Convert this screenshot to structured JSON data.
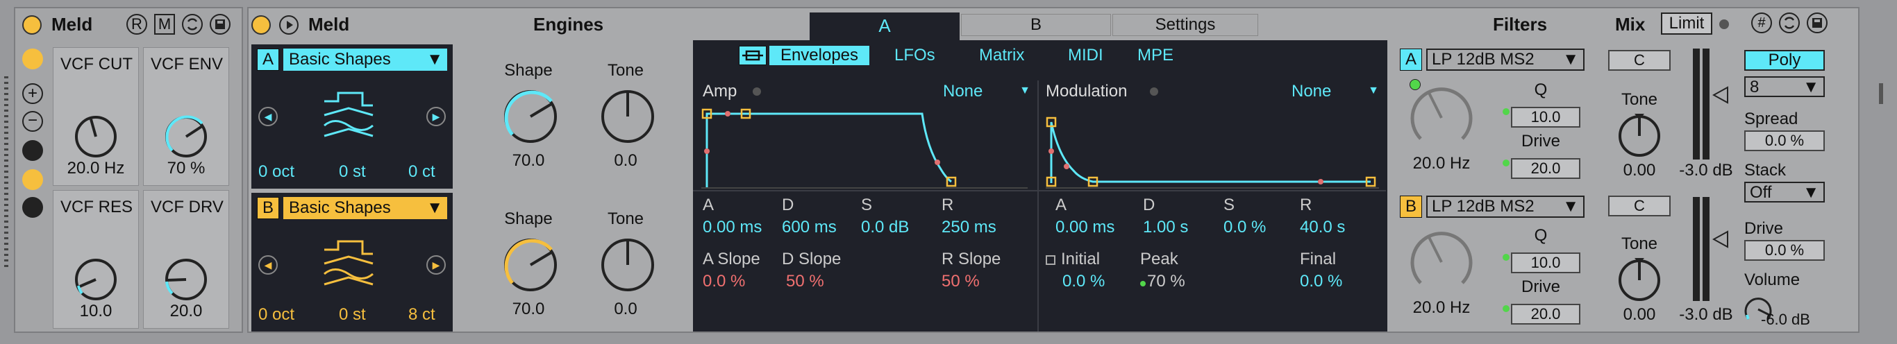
{
  "device1": {
    "title": "Meld",
    "btn_r": "R",
    "btn_m": "M",
    "macros": [
      {
        "label": "VCF CUT",
        "value": "20.0 Hz",
        "level": 0.45
      },
      {
        "label": "VCF ENV",
        "value": "70 %",
        "level": 0.7
      },
      {
        "label": "VCF RES",
        "value": "10.0",
        "level": 0.1
      },
      {
        "label": "VCF DRV",
        "value": "20.0",
        "level": 0.2
      }
    ]
  },
  "device2": {
    "title": "Meld",
    "engines_label": "Engines",
    "tabs": [
      "A",
      "B",
      "Settings"
    ],
    "osc_a": {
      "badge": "A",
      "type": "Basic Shapes",
      "oct": "0 oct",
      "st": "0 st",
      "ct": "0 ct",
      "shape_label": "Shape",
      "shape_value": "70.0",
      "tone_label": "Tone",
      "tone_value": "0.0"
    },
    "osc_b": {
      "badge": "B",
      "type": "Basic Shapes",
      "oct": "0 oct",
      "st": "0 st",
      "ct": "8 ct",
      "shape_label": "Shape",
      "shape_value": "70.0",
      "tone_label": "Tone",
      "tone_value": "0.0"
    },
    "subtabs": [
      "Envelopes",
      "LFOs",
      "Matrix",
      "MIDI",
      "MPE"
    ],
    "amp": {
      "title": "Amp",
      "dest": "None",
      "params": [
        {
          "label": "A",
          "value": "0.00 ms"
        },
        {
          "label": "D",
          "value": "600 ms"
        },
        {
          "label": "S",
          "value": "0.0 dB"
        },
        {
          "label": "R",
          "value": "250 ms"
        }
      ],
      "slopes": [
        {
          "label": "A Slope",
          "value": "0.0 %"
        },
        {
          "label": "D Slope",
          "value": "50 %"
        },
        {
          "label": "R Slope",
          "value": "50 %"
        }
      ]
    },
    "mod": {
      "title": "Modulation",
      "dest": "None",
      "params": [
        {
          "label": "A",
          "value": "0.00 ms"
        },
        {
          "label": "D",
          "value": "1.00 s"
        },
        {
          "label": "S",
          "value": "0.0 %"
        },
        {
          "label": "R",
          "value": "40.0 s"
        }
      ],
      "initial_label": "Initial",
      "initial_value": "0.0 %",
      "peak_label": "Peak",
      "peak_value": "70 %",
      "final_label": "Final",
      "final_value": "0.0 %"
    },
    "filters": {
      "label": "Filters",
      "a": {
        "badge": "A",
        "type": "LP 12dB MS2",
        "freq": "20.0 Hz",
        "q_label": "Q",
        "q_value": "10.0",
        "drive_label": "Drive",
        "drive_value": "20.0"
      },
      "b": {
        "badge": "B",
        "type": "LP 12dB MS2",
        "freq": "20.0 Hz",
        "q_label": "Q",
        "q_value": "10.0",
        "drive_label": "Drive",
        "drive_value": "20.0"
      }
    },
    "mix": {
      "label": "Mix",
      "limit": "Limit",
      "a": {
        "pan": "C",
        "tone_label": "Tone",
        "tone_value": "0.00",
        "gain": "-3.0 dB"
      },
      "b": {
        "pan": "C",
        "tone_label": "Tone",
        "tone_value": "0.00",
        "gain": "-3.0 dB"
      }
    },
    "global": {
      "poly": "Poly",
      "voices": "8",
      "spread_label": "Spread",
      "spread_value": "0.0 %",
      "stack_label": "Stack",
      "stack_value": "Off",
      "drive_label": "Drive",
      "drive_value": "0.0 %",
      "volume_label": "Volume",
      "volume_value": "-6.0 dB"
    }
  },
  "colors": {
    "accent_cyan": "#5ee8f8",
    "accent_yellow": "#f6bf3e",
    "dark_panel": "#1f2129",
    "device_bg": "#a9aaac",
    "led_green": "#52d64a",
    "red_value": "#f07070"
  }
}
